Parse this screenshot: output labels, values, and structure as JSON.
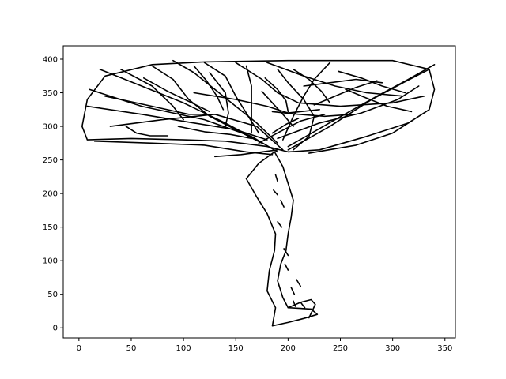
{
  "chart_data": {
    "type": "line",
    "title": "",
    "xlabel": "",
    "ylabel": "",
    "xlim": [
      -15,
      360
    ],
    "ylim": [
      -15,
      420
    ],
    "x_ticks": [
      0,
      50,
      100,
      150,
      200,
      250,
      300,
      350
    ],
    "y_ticks": [
      0,
      50,
      100,
      150,
      200,
      250,
      300,
      350,
      400
    ],
    "grid": false,
    "legend": "none",
    "line_color": "#000000",
    "series": [
      {
        "points": [
          [
            8,
            280
          ],
          [
            50,
            282
          ],
          [
            100,
            280
          ],
          [
            140,
            278
          ],
          [
            180,
            270
          ],
          [
            200,
            262
          ],
          [
            230,
            265
          ],
          [
            275,
            285
          ],
          [
            315,
            305
          ],
          [
            335,
            325
          ],
          [
            340,
            355
          ],
          [
            335,
            385
          ],
          [
            300,
            398
          ],
          [
            200,
            398
          ],
          [
            120,
            396
          ],
          [
            70,
            392
          ],
          [
            25,
            375
          ],
          [
            8,
            340
          ],
          [
            3,
            300
          ],
          [
            8,
            280
          ]
        ]
      },
      {
        "points": [
          [
            185,
            3
          ],
          [
            200,
            8
          ],
          [
            215,
            14
          ],
          [
            228,
            20
          ],
          [
            222,
            28
          ],
          [
            200,
            30
          ],
          [
            195,
            45
          ],
          [
            190,
            70
          ],
          [
            193,
            95
          ],
          [
            198,
            115
          ],
          [
            200,
            140
          ],
          [
            203,
            165
          ],
          [
            205,
            190
          ],
          [
            200,
            215
          ],
          [
            195,
            240
          ],
          [
            187,
            262
          ],
          [
            172,
            245
          ],
          [
            160,
            222
          ],
          [
            170,
            195
          ],
          [
            180,
            170
          ],
          [
            188,
            140
          ],
          [
            187,
            115
          ],
          [
            182,
            85
          ],
          [
            180,
            55
          ],
          [
            188,
            30
          ],
          [
            185,
            3
          ]
        ]
      },
      {
        "points": [
          [
            200,
            30
          ],
          [
            212,
            38
          ],
          [
            222,
            42
          ],
          [
            226,
            35
          ],
          [
            220,
            15
          ]
        ]
      },
      {
        "points": [
          [
            10,
            355
          ],
          [
            60,
            330
          ],
          [
            120,
            310
          ],
          [
            165,
            285
          ],
          [
            190,
            262
          ]
        ]
      },
      {
        "points": [
          [
            30,
            300
          ],
          [
            80,
            310
          ],
          [
            130,
            318
          ],
          [
            170,
            300
          ],
          [
            195,
            265
          ]
        ]
      },
      {
        "points": [
          [
            8,
            330
          ],
          [
            60,
            318
          ],
          [
            110,
            305
          ],
          [
            150,
            295
          ],
          [
            180,
            280
          ]
        ]
      },
      {
        "points": [
          [
            15,
            278
          ],
          [
            70,
            275
          ],
          [
            120,
            272
          ],
          [
            160,
            262
          ],
          [
            185,
            258
          ]
        ]
      },
      {
        "points": [
          [
            20,
            385
          ],
          [
            60,
            360
          ],
          [
            100,
            335
          ],
          [
            140,
            305
          ],
          [
            170,
            280
          ]
        ]
      },
      {
        "points": [
          [
            70,
            390
          ],
          [
            90,
            370
          ],
          [
            105,
            340
          ],
          [
            125,
            315
          ],
          [
            150,
            295
          ],
          [
            175,
            275
          ]
        ]
      },
      {
        "points": [
          [
            90,
            398
          ],
          [
            110,
            380
          ],
          [
            130,
            355
          ],
          [
            150,
            330
          ],
          [
            170,
            305
          ],
          [
            190,
            275
          ]
        ]
      },
      {
        "points": [
          [
            160,
            390
          ],
          [
            165,
            360
          ],
          [
            165,
            320
          ],
          [
            165,
            290
          ]
        ]
      },
      {
        "points": [
          [
            120,
            395
          ],
          [
            140,
            375
          ],
          [
            150,
            345
          ],
          [
            162,
            315
          ],
          [
            172,
            290
          ]
        ]
      },
      {
        "points": [
          [
            190,
            385
          ],
          [
            200,
            365
          ],
          [
            215,
            340
          ],
          [
            225,
            315
          ],
          [
            220,
            285
          ],
          [
            205,
            265
          ]
        ]
      },
      {
        "points": [
          [
            240,
            395
          ],
          [
            225,
            370
          ],
          [
            215,
            345
          ],
          [
            205,
            315
          ],
          [
            195,
            280
          ]
        ]
      },
      {
        "points": [
          [
            200,
            265
          ],
          [
            240,
            300
          ],
          [
            280,
            340
          ],
          [
            310,
            365
          ],
          [
            335,
            385
          ]
        ]
      },
      {
        "points": [
          [
            200,
            270
          ],
          [
            245,
            310
          ],
          [
            285,
            345
          ],
          [
            315,
            370
          ],
          [
            340,
            392
          ]
        ]
      },
      {
        "points": [
          [
            190,
            282
          ],
          [
            230,
            305
          ],
          [
            270,
            320
          ],
          [
            305,
            340
          ],
          [
            325,
            360
          ]
        ]
      },
      {
        "points": [
          [
            150,
            395
          ],
          [
            175,
            370
          ],
          [
            190,
            350
          ],
          [
            210,
            335
          ],
          [
            250,
            330
          ],
          [
            300,
            335
          ],
          [
            330,
            345
          ]
        ]
      },
      {
        "points": [
          [
            180,
            395
          ],
          [
            215,
            375
          ],
          [
            245,
            360
          ],
          [
            275,
            350
          ],
          [
            310,
            345
          ]
        ]
      },
      {
        "points": [
          [
            220,
            260
          ],
          [
            265,
            272
          ],
          [
            300,
            290
          ],
          [
            320,
            310
          ]
        ]
      },
      {
        "points": [
          [
            110,
            350
          ],
          [
            150,
            340
          ],
          [
            180,
            330
          ],
          [
            200,
            320
          ],
          [
            230,
            325
          ]
        ]
      },
      {
        "points": [
          [
            25,
            345
          ],
          [
            70,
            330
          ],
          [
            105,
            318
          ],
          [
            130,
            318
          ]
        ]
      },
      {
        "points": [
          [
            40,
            385
          ],
          [
            70,
            360
          ],
          [
            90,
            330
          ],
          [
            100,
            310
          ]
        ]
      },
      {
        "points": [
          [
            125,
            380
          ],
          [
            140,
            350
          ],
          [
            143,
            320
          ],
          [
            140,
            300
          ]
        ]
      },
      {
        "points": [
          [
            215,
            360
          ],
          [
            240,
            365
          ],
          [
            265,
            370
          ],
          [
            290,
            365
          ]
        ]
      },
      {
        "points": [
          [
            130,
            255
          ],
          [
            155,
            258
          ],
          [
            175,
            262
          ],
          [
            190,
            265
          ]
        ]
      },
      {
        "points": [
          [
            185,
            322
          ],
          [
            210,
            318
          ],
          [
            235,
            315
          ],
          [
            262,
            318
          ]
        ]
      },
      {
        "points": [
          [
            62,
            372
          ],
          [
            85,
            352
          ],
          [
            108,
            335
          ],
          [
            125,
            322
          ]
        ]
      },
      {
        "points": [
          [
            110,
            390
          ],
          [
            122,
            368
          ],
          [
            132,
            345
          ],
          [
            138,
            325
          ]
        ]
      },
      {
        "points": [
          [
            255,
            355
          ],
          [
            275,
            342
          ],
          [
            295,
            330
          ],
          [
            318,
            322
          ]
        ]
      },
      {
        "points": [
          [
            172,
            275
          ],
          [
            192,
            292
          ],
          [
            212,
            308
          ],
          [
            235,
            318
          ]
        ]
      },
      {
        "points": [
          [
            185,
            290
          ],
          [
            198,
            303
          ],
          [
            210,
            312
          ]
        ]
      },
      {
        "points": [
          [
            175,
            352
          ],
          [
            185,
            335
          ],
          [
            195,
            318
          ],
          [
            205,
            300
          ]
        ]
      },
      {
        "points": [
          [
            95,
            300
          ],
          [
            120,
            292
          ],
          [
            145,
            288
          ],
          [
            165,
            282
          ]
        ]
      },
      {
        "points": [
          [
            248,
            382
          ],
          [
            270,
            372
          ],
          [
            290,
            360
          ],
          [
            312,
            350
          ]
        ]
      },
      {
        "points": [
          [
            178,
            372
          ],
          [
            190,
            355
          ],
          [
            198,
            338
          ],
          [
            200,
            322
          ]
        ]
      },
      {
        "points": [
          [
            45,
            300
          ],
          [
            55,
            290
          ],
          [
            68,
            286
          ],
          [
            85,
            286
          ]
        ]
      },
      {
        "points": [
          [
            225,
            332
          ],
          [
            245,
            345
          ],
          [
            265,
            358
          ],
          [
            285,
            368
          ]
        ]
      },
      {
        "points": [
          [
            205,
            385
          ],
          [
            220,
            370
          ],
          [
            232,
            352
          ],
          [
            240,
            335
          ]
        ]
      }
    ],
    "dashes": [
      {
        "points": [
          [
            188,
            228
          ],
          [
            190,
            218
          ]
        ]
      },
      {
        "points": [
          [
            186,
            205
          ],
          [
            190,
            198
          ]
        ]
      },
      {
        "points": [
          [
            193,
            190
          ],
          [
            196,
            180
          ]
        ]
      },
      {
        "points": [
          [
            190,
            158
          ],
          [
            194,
            150
          ]
        ]
      },
      {
        "points": [
          [
            196,
            118
          ],
          [
            200,
            108
          ]
        ]
      },
      {
        "points": [
          [
            197,
            95
          ],
          [
            200,
            86
          ]
        ]
      },
      {
        "points": [
          [
            203,
            60
          ],
          [
            206,
            50
          ]
        ]
      },
      {
        "points": [
          [
            205,
            40
          ],
          [
            207,
            32
          ]
        ]
      },
      {
        "points": [
          [
            208,
            72
          ],
          [
            212,
            62
          ]
        ]
      },
      {
        "points": [
          [
            212,
            38
          ],
          [
            216,
            30
          ]
        ]
      }
    ]
  }
}
